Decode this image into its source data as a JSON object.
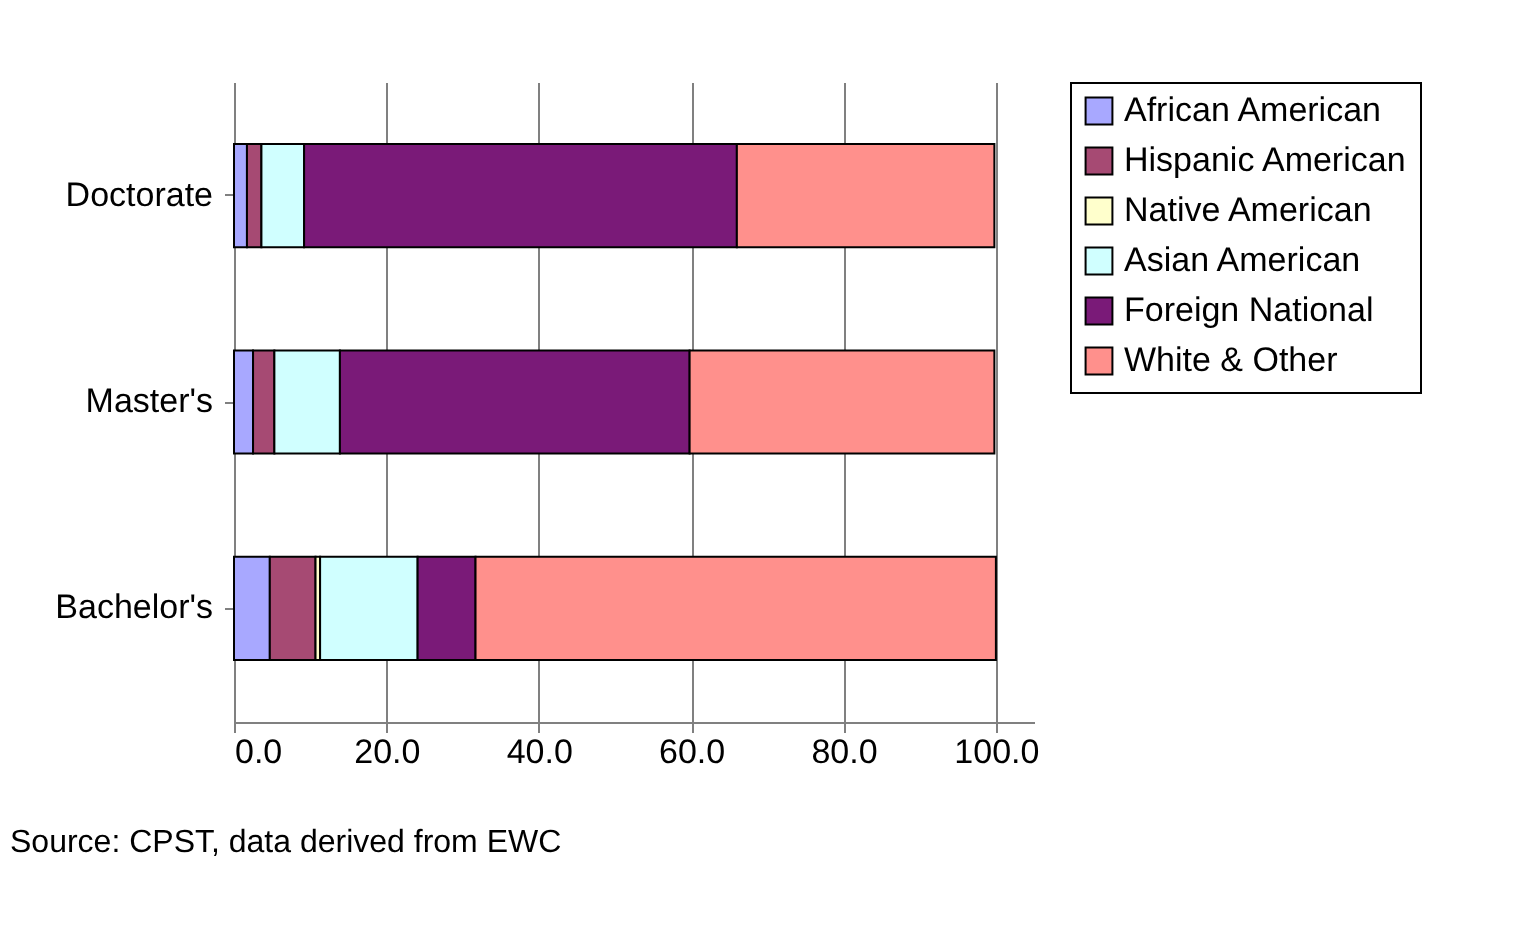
{
  "chart_data": {
    "type": "bar",
    "orientation": "horizontal",
    "stacked": true,
    "categories": [
      "Doctorate",
      "Master's",
      "Bachelor's"
    ],
    "series": [
      {
        "name": "African American",
        "color": "#a8a8ff",
        "values": [
          1.7,
          2.5,
          4.7
        ]
      },
      {
        "name": "Hispanic American",
        "color": "#a64a73",
        "values": [
          1.9,
          2.8,
          6.0
        ]
      },
      {
        "name": "Native American",
        "color": "#ffffcc",
        "values": [
          null,
          null,
          0.6
        ]
      },
      {
        "name": "Asian American",
        "color": "#d0ffff",
        "values": [
          5.6,
          8.6,
          12.8
        ]
      },
      {
        "name": "Foreign National",
        "color": "#7a1a78",
        "values": [
          56.8,
          45.9,
          7.6
        ]
      },
      {
        "name": "White & Other",
        "color": "#ff908c",
        "values": [
          33.8,
          40.0,
          68.3
        ]
      }
    ],
    "xlim": [
      0,
      105
    ],
    "xticks": [
      {
        "value": 0,
        "label": "0.0"
      },
      {
        "value": 20,
        "label": "20.0"
      },
      {
        "value": 40,
        "label": "40.0"
      },
      {
        "value": 60,
        "label": "60.0"
      },
      {
        "value": 80,
        "label": "80.0"
      },
      {
        "value": 100,
        "label": "100.0"
      }
    ],
    "grid": "x",
    "legend": "right",
    "annotations": [
      "Source:  CPST, data derived from EWC"
    ]
  }
}
